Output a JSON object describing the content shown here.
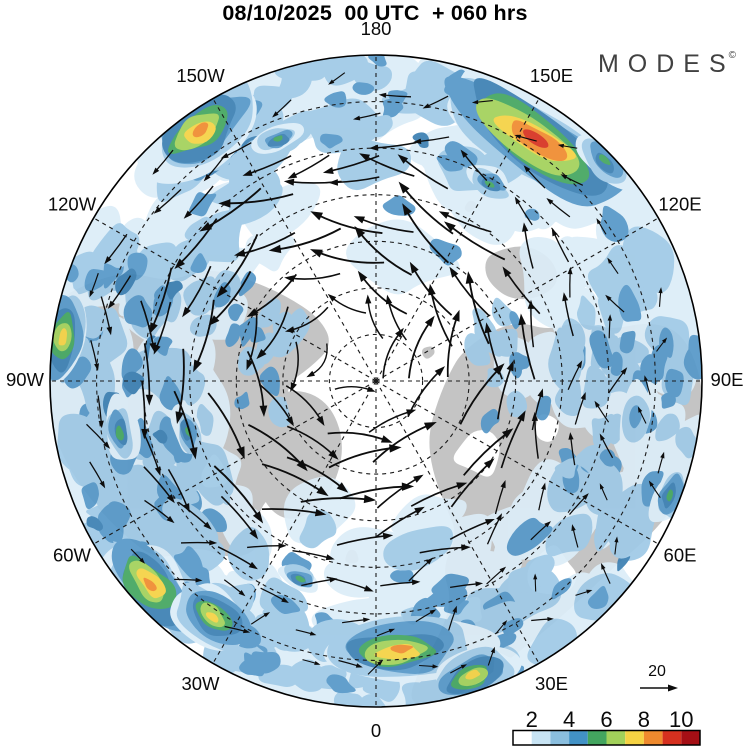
{
  "header": {
    "title": "08/10/2025  00 UTC  + 060 hrs"
  },
  "branding": {
    "logo_text": "MODES",
    "logo_mark": "©"
  },
  "map": {
    "projection": "north-polar-stereographic",
    "meridian_labels": [
      {
        "label": "180",
        "angle_deg": 0
      },
      {
        "label": "150E",
        "angle_deg": 30
      },
      {
        "label": "120E",
        "angle_deg": 60
      },
      {
        "label": "90E",
        "angle_deg": 90
      },
      {
        "label": "60E",
        "angle_deg": 120
      },
      {
        "label": "30E",
        "angle_deg": 150
      },
      {
        "label": "0",
        "angle_deg": 180
      },
      {
        "label": "30W",
        "angle_deg": 210
      },
      {
        "label": "60W",
        "angle_deg": 240
      },
      {
        "label": "90W",
        "angle_deg": 270
      },
      {
        "label": "120W",
        "angle_deg": 300
      },
      {
        "label": "150W",
        "angle_deg": 330
      }
    ],
    "land_color": "#c4c4c4",
    "ocean_color": "#ffffff",
    "graticule_color": "#1b1b1b",
    "arrow_color": "#0d0d0d"
  },
  "wind_legend": {
    "value": "20"
  },
  "colorbar": {
    "tick_labels": [
      "2",
      "4",
      "6",
      "8",
      "10"
    ],
    "segment_colors": [
      "#ffffff",
      "#c8e4f4",
      "#8abede",
      "#4292c6",
      "#43a55f",
      "#a2d15a",
      "#f5d243",
      "#ef8a2e",
      "#d6301f",
      "#a50f15"
    ]
  },
  "chart_data": {
    "type": "heatmap",
    "title": "08/10/2025 00 UTC + 060 hrs",
    "projection": "north-polar-stereographic",
    "meridians": [
      "180",
      "150E",
      "120E",
      "90E",
      "60E",
      "30E",
      "0",
      "30W",
      "60W",
      "90W",
      "120W",
      "150W"
    ],
    "colorbar_levels": [
      2,
      3,
      4,
      5,
      6,
      7,
      8,
      9,
      10
    ],
    "colorbar_tick_labels": [
      2,
      4,
      6,
      8,
      10
    ],
    "reference_vector": 20,
    "legend_position": "bottom-right"
  }
}
